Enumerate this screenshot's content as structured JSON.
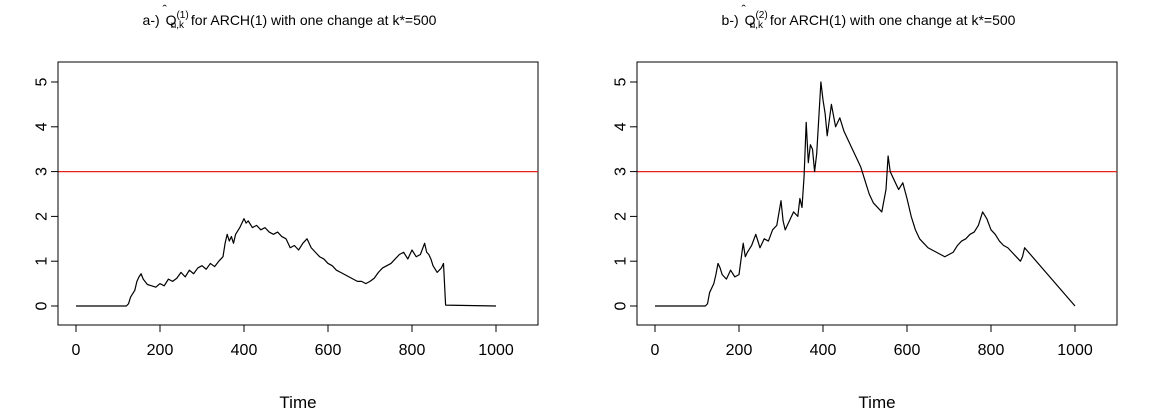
{
  "chart_data": [
    {
      "type": "line",
      "title_prefix": "a-)",
      "q_symbol": "Q",
      "q_superscript": "(1)",
      "q_subscript": "n,k",
      "title_suffix": "for ARCH(1)  with one change at k*=500",
      "xlabel": "Time",
      "ylabel": "",
      "xlim": [
        0,
        1000
      ],
      "ylim": [
        0,
        5
      ],
      "xticks": [
        "0",
        "200",
        "400",
        "600",
        "800",
        "1000"
      ],
      "yticks": [
        "0",
        "1",
        "2",
        "3",
        "4",
        "5"
      ],
      "threshold": {
        "y": 3.0,
        "color": "#e8201c"
      },
      "series": [
        {
          "color": "#000000",
          "x": [
            0,
            120,
            125,
            130,
            140,
            145,
            150,
            155,
            160,
            170,
            180,
            190,
            200,
            210,
            220,
            230,
            240,
            250,
            260,
            270,
            280,
            290,
            300,
            310,
            320,
            330,
            340,
            350,
            355,
            360,
            365,
            370,
            375,
            380,
            390,
            400,
            405,
            410,
            420,
            430,
            440,
            450,
            460,
            470,
            480,
            490,
            500,
            510,
            520,
            530,
            540,
            550,
            560,
            570,
            580,
            590,
            600,
            610,
            620,
            630,
            640,
            650,
            660,
            670,
            680,
            690,
            700,
            710,
            720,
            730,
            740,
            750,
            760,
            770,
            780,
            790,
            800,
            810,
            820,
            830,
            835,
            840,
            845,
            850,
            860,
            870,
            875,
            880,
            1000
          ],
          "y": [
            0,
            0,
            0.05,
            0.2,
            0.35,
            0.55,
            0.65,
            0.72,
            0.6,
            0.48,
            0.45,
            0.42,
            0.5,
            0.45,
            0.6,
            0.55,
            0.62,
            0.75,
            0.65,
            0.8,
            0.72,
            0.85,
            0.9,
            0.82,
            0.95,
            0.88,
            1.0,
            1.1,
            1.4,
            1.6,
            1.45,
            1.55,
            1.4,
            1.6,
            1.75,
            1.95,
            1.85,
            1.9,
            1.75,
            1.8,
            1.7,
            1.75,
            1.65,
            1.6,
            1.65,
            1.55,
            1.5,
            1.3,
            1.35,
            1.25,
            1.4,
            1.5,
            1.3,
            1.2,
            1.1,
            1.05,
            0.95,
            0.9,
            0.8,
            0.75,
            0.7,
            0.65,
            0.6,
            0.55,
            0.55,
            0.5,
            0.55,
            0.62,
            0.75,
            0.85,
            0.9,
            0.95,
            1.05,
            1.15,
            1.2,
            1.05,
            1.25,
            1.1,
            1.15,
            1.4,
            1.2,
            1.15,
            1.05,
            0.9,
            0.75,
            0.85,
            0.95,
            0.02,
            0
          ]
        }
      ]
    },
    {
      "type": "line",
      "title_prefix": "b-)",
      "q_symbol": "Q",
      "q_superscript": "(2)",
      "q_subscript": "n,k",
      "title_suffix": "for ARCH(1)  with one change at k*=500",
      "xlabel": "Time",
      "ylabel": "",
      "xlim": [
        0,
        1000
      ],
      "ylim": [
        0,
        5
      ],
      "xticks": [
        "0",
        "200",
        "400",
        "600",
        "800",
        "1000"
      ],
      "yticks": [
        "0",
        "1",
        "2",
        "3",
        "4",
        "5"
      ],
      "threshold": {
        "y": 3.0,
        "color": "#e8201c"
      },
      "series": [
        {
          "color": "#000000",
          "x": [
            0,
            120,
            125,
            130,
            140,
            145,
            150,
            155,
            160,
            170,
            180,
            190,
            200,
            210,
            215,
            220,
            230,
            240,
            250,
            260,
            270,
            280,
            290,
            300,
            305,
            310,
            320,
            330,
            340,
            345,
            350,
            355,
            360,
            365,
            370,
            375,
            380,
            385,
            390,
            395,
            400,
            405,
            410,
            420,
            430,
            440,
            450,
            460,
            470,
            480,
            490,
            500,
            510,
            520,
            530,
            540,
            550,
            555,
            560,
            570,
            580,
            590,
            600,
            610,
            620,
            630,
            640,
            650,
            660,
            670,
            680,
            690,
            700,
            710,
            720,
            730,
            740,
            750,
            760,
            770,
            780,
            790,
            800,
            810,
            820,
            830,
            840,
            850,
            860,
            870,
            875,
            880,
            1000
          ],
          "y": [
            0,
            0,
            0.05,
            0.3,
            0.5,
            0.7,
            0.95,
            0.85,
            0.7,
            0.6,
            0.8,
            0.65,
            0.7,
            1.4,
            1.1,
            1.2,
            1.35,
            1.6,
            1.3,
            1.5,
            1.45,
            1.7,
            1.8,
            2.35,
            1.9,
            1.7,
            1.9,
            2.1,
            2.0,
            2.4,
            2.2,
            2.9,
            4.1,
            3.2,
            3.6,
            3.5,
            3.0,
            3.4,
            4.2,
            5.0,
            4.6,
            4.3,
            3.8,
            4.5,
            4.0,
            4.2,
            3.9,
            3.7,
            3.5,
            3.3,
            3.1,
            2.8,
            2.5,
            2.3,
            2.2,
            2.1,
            2.6,
            3.35,
            3.0,
            2.8,
            2.6,
            2.75,
            2.4,
            2.0,
            1.7,
            1.5,
            1.4,
            1.3,
            1.25,
            1.2,
            1.15,
            1.1,
            1.15,
            1.2,
            1.35,
            1.45,
            1.5,
            1.6,
            1.65,
            1.8,
            2.1,
            1.95,
            1.7,
            1.6,
            1.45,
            1.35,
            1.3,
            1.2,
            1.1,
            1.0,
            1.1,
            1.3,
            0.0
          ]
        }
      ]
    }
  ]
}
